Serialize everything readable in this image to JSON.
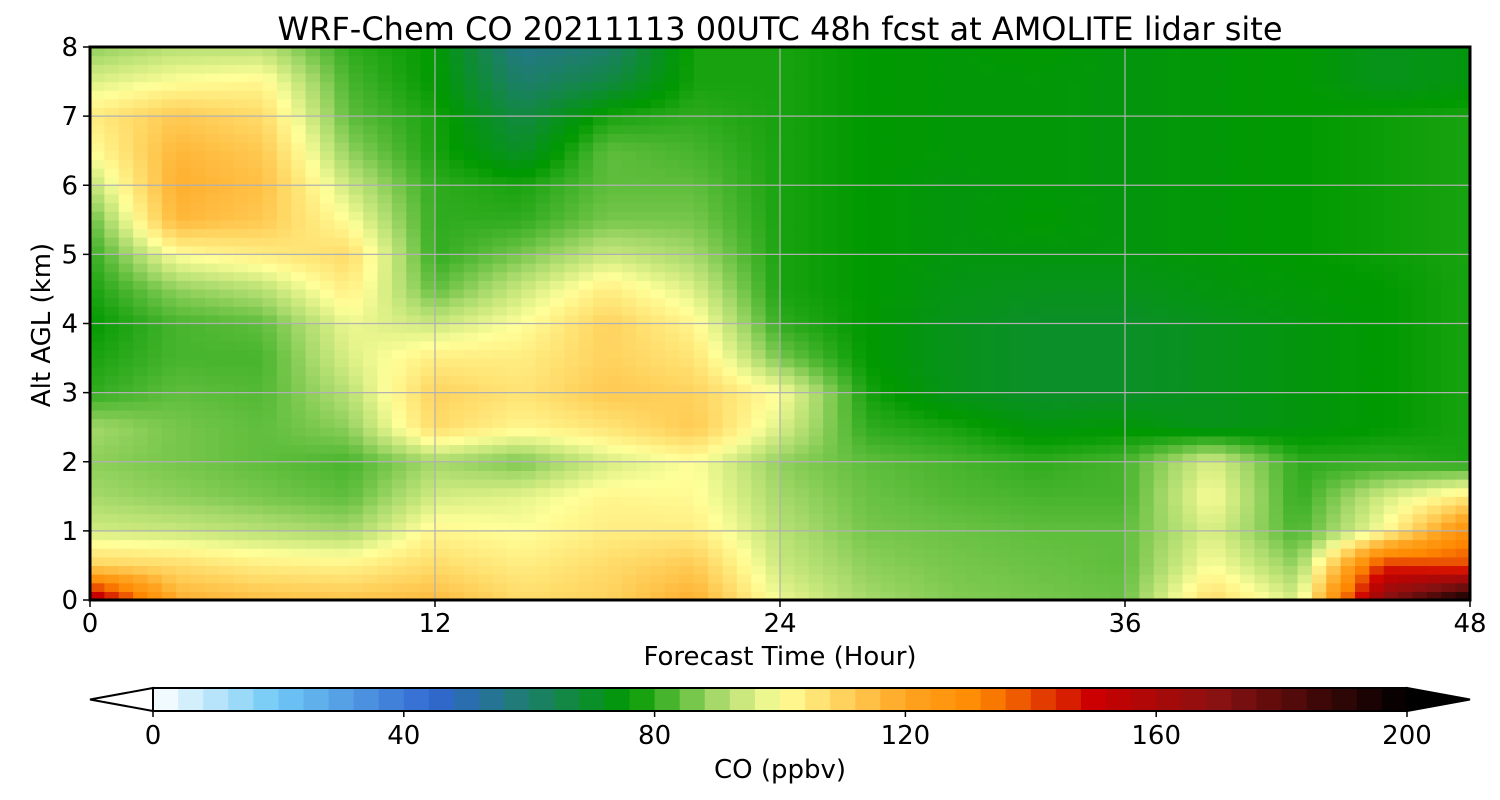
{
  "chart_data": {
    "type": "heatmap",
    "title": "WRF-Chem CO  20211113 00UTC 48h fcst at AMOLITE lidar site",
    "xlabel": "Forecast Time (Hour)",
    "ylabel": "Alt AGL (km)",
    "xlim": [
      0,
      48
    ],
    "ylim": [
      0,
      8
    ],
    "xticks": [
      "0",
      "12",
      "24",
      "36",
      "48"
    ],
    "yticks": [
      "0",
      "1",
      "2",
      "3",
      "4",
      "5",
      "6",
      "7",
      "8"
    ],
    "grid": true,
    "x": [
      0,
      3,
      6,
      9,
      12,
      15,
      18,
      21,
      24,
      27,
      30,
      33,
      36,
      39,
      42,
      45,
      48
    ],
    "y": [
      0,
      0.5,
      1,
      1.5,
      2,
      2.5,
      3,
      3.5,
      4,
      4.5,
      5,
      5.5,
      6,
      6.5,
      7,
      7.5,
      8
    ],
    "z": [
      [
        160,
        118,
        114,
        113,
        115,
        108,
        110,
        118,
        98,
        90,
        87,
        86,
        85,
        108,
        95,
        170,
        200
      ],
      [
        110,
        108,
        104,
        103,
        108,
        104,
        108,
        112,
        94,
        88,
        86,
        85,
        84,
        100,
        88,
        145,
        140
      ],
      [
        95,
        94,
        92,
        90,
        102,
        100,
        104,
        104,
        92,
        86,
        85,
        84,
        84,
        96,
        82,
        100,
        130
      ],
      [
        90,
        88,
        86,
        84,
        95,
        97,
        102,
        101,
        90,
        85,
        83,
        82,
        82,
        100,
        80,
        95,
        105
      ],
      [
        88,
        86,
        84,
        82,
        90,
        86,
        95,
        100,
        88,
        84,
        82,
        80,
        82,
        96,
        80,
        80,
        78
      ],
      [
        90,
        86,
        84,
        88,
        108,
        102,
        106,
        112,
        96,
        80,
        78,
        74,
        75,
        72,
        74,
        76,
        78
      ],
      [
        80,
        84,
        83,
        92,
        110,
        106,
        112,
        110,
        100,
        78,
        72,
        70,
        70,
        72,
        74,
        76,
        78
      ],
      [
        78,
        82,
        82,
        96,
        104,
        104,
        110,
        106,
        86,
        76,
        72,
        70,
        70,
        72,
        74,
        76,
        78
      ],
      [
        76,
        82,
        84,
        98,
        94,
        100,
        110,
        102,
        80,
        76,
        72,
        70,
        70,
        72,
        74,
        76,
        78
      ],
      [
        78,
        88,
        92,
        104,
        84,
        94,
        104,
        96,
        78,
        76,
        73,
        72,
        72,
        74,
        75,
        76,
        78
      ],
      [
        80,
        100,
        104,
        108,
        80,
        86,
        94,
        90,
        78,
        76,
        74,
        74,
        74,
        75,
        76,
        77,
        78
      ],
      [
        84,
        116,
        112,
        100,
        80,
        80,
        86,
        86,
        78,
        76,
        74,
        76,
        74,
        75,
        76,
        77,
        78
      ],
      [
        92,
        118,
        114,
        94,
        80,
        78,
        84,
        84,
        78,
        76,
        74,
        75,
        74,
        75,
        76,
        77,
        78
      ],
      [
        100,
        116,
        112,
        88,
        78,
        70,
        84,
        82,
        78,
        76,
        75,
        75,
        74,
        75,
        76,
        77,
        78
      ],
      [
        104,
        112,
        108,
        84,
        78,
        66,
        78,
        80,
        78,
        76,
        75,
        75,
        74,
        75,
        76,
        77,
        78
      ],
      [
        96,
        100,
        102,
        82,
        76,
        60,
        66,
        78,
        78,
        76,
        75,
        75,
        74,
        75,
        76,
        72,
        74
      ],
      [
        88,
        92,
        92,
        80,
        76,
        56,
        60,
        78,
        78,
        76,
        75,
        76,
        74,
        75,
        76,
        72,
        74
      ]
    ],
    "colorbar": {
      "label": "CO  (ppbv)",
      "min": 0,
      "max": 200,
      "ticks": [
        "0",
        "40",
        "80",
        "120",
        "160",
        "200"
      ],
      "extend": "both",
      "stops": [
        {
          "v": 0,
          "c": "#ffffff"
        },
        {
          "v": 20,
          "c": "#6fc8f5"
        },
        {
          "v": 45,
          "c": "#3066d0"
        },
        {
          "v": 60,
          "c": "#1d7e6c"
        },
        {
          "v": 76,
          "c": "#009900"
        },
        {
          "v": 90,
          "c": "#a6d96a"
        },
        {
          "v": 100,
          "c": "#ffff99"
        },
        {
          "v": 120,
          "c": "#ffa521"
        },
        {
          "v": 132,
          "c": "#ff8800"
        },
        {
          "v": 150,
          "c": "#cc0000"
        },
        {
          "v": 170,
          "c": "#881111"
        },
        {
          "v": 200,
          "c": "#000000"
        }
      ]
    }
  }
}
